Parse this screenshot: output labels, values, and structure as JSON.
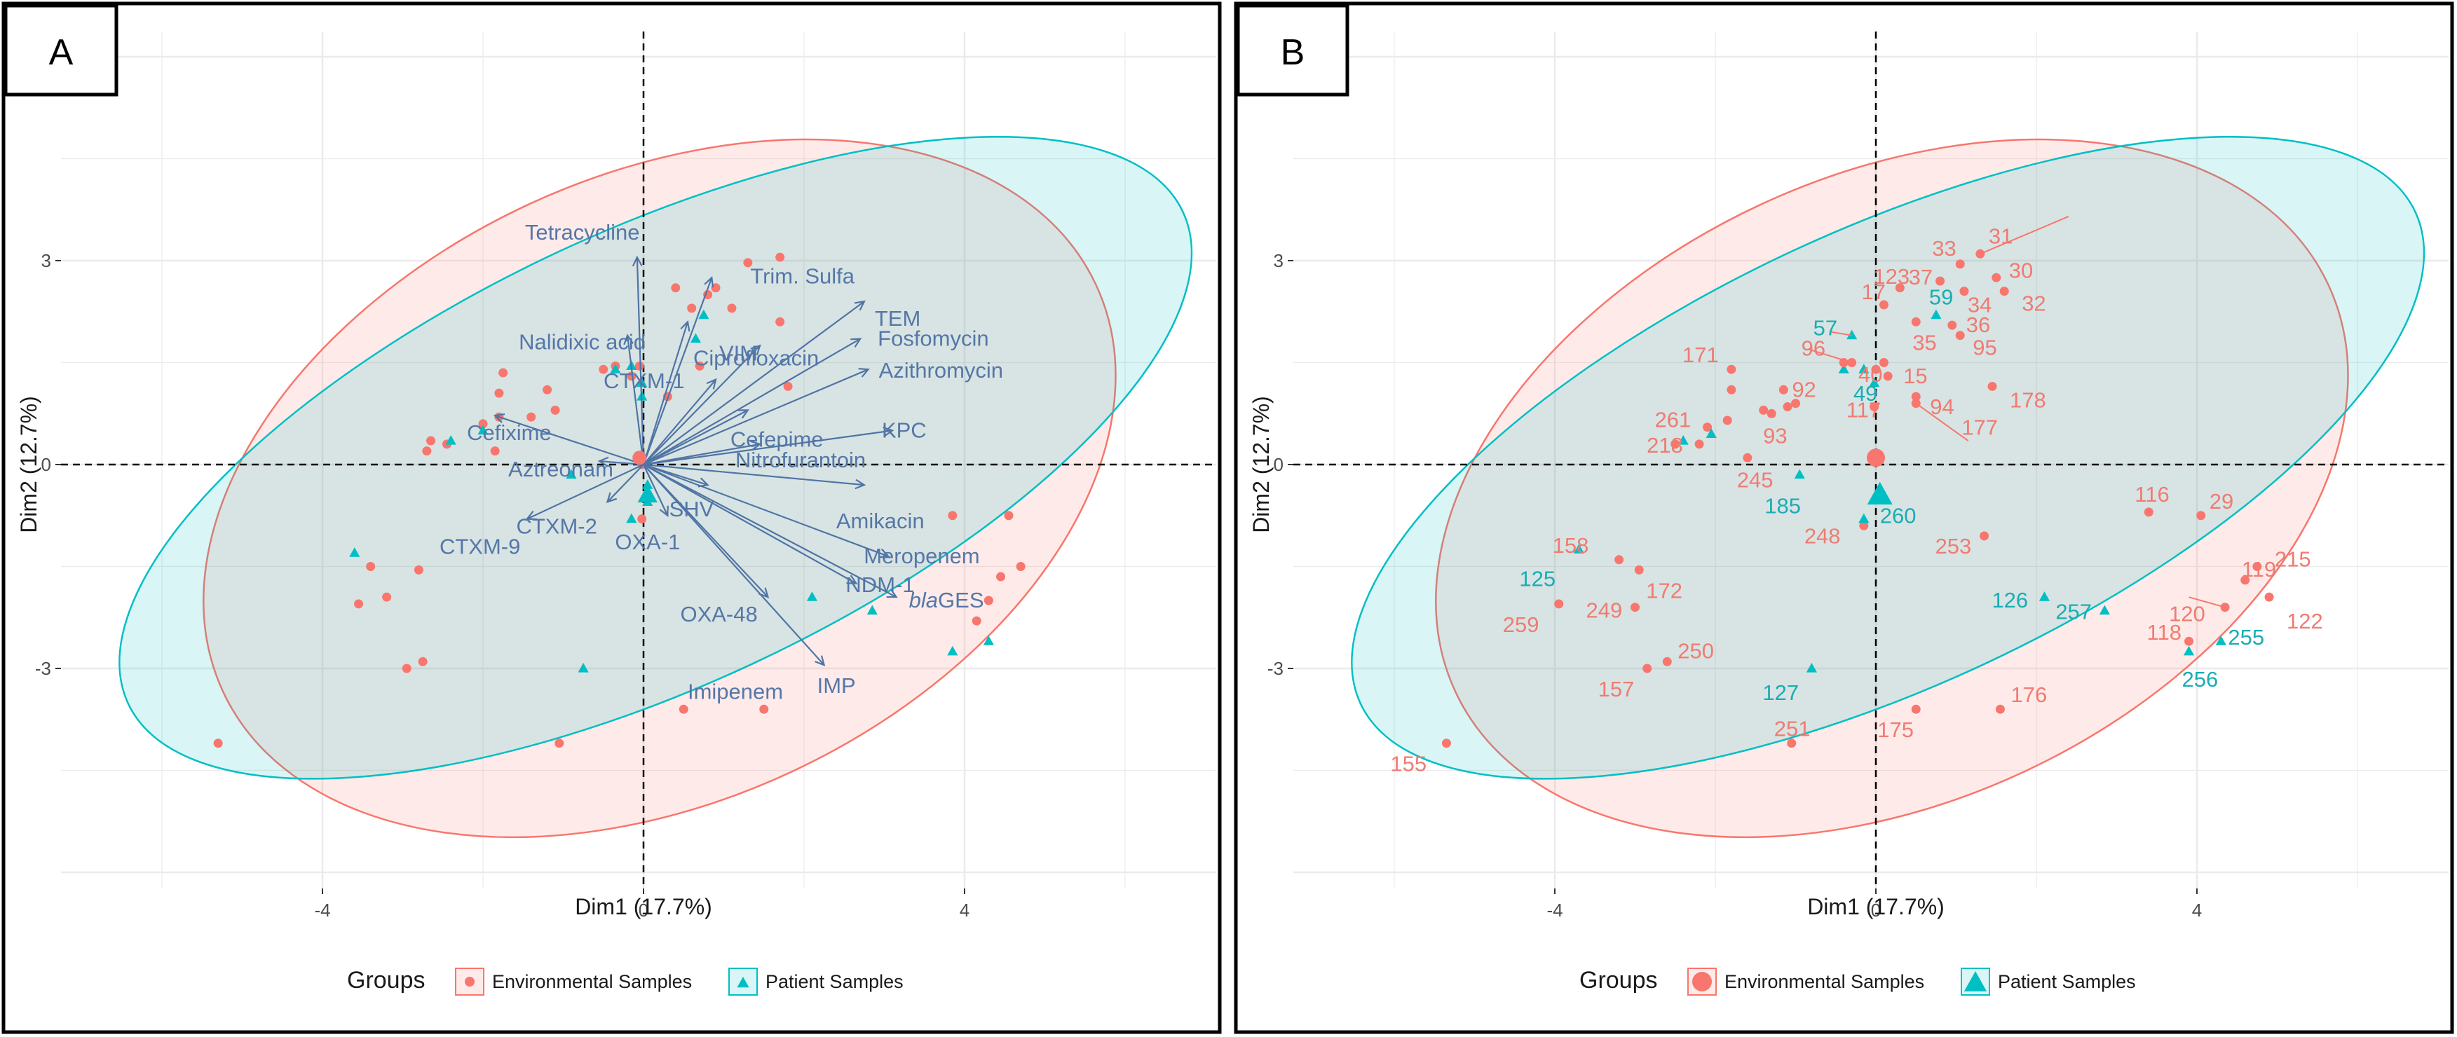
{
  "colors": {
    "env": "#f8766d",
    "pat": "#00bfc4",
    "arrow": "#4f74a5",
    "grid": "#ebebeb"
  },
  "chart_data": [
    {
      "panel_label": "A",
      "type": "scatter",
      "subtype": "pca-biplot",
      "xlabel": "Dim1 (17.7%)",
      "ylabel": "Dim2 (12.7%)",
      "xlim": [
        -7.8,
        7.8
      ],
      "ylim": [
        -6.3,
        5.6
      ],
      "xticks": [
        -4,
        0,
        4
      ],
      "xtick_labels": [
        "-4",
        "0",
        "4"
      ],
      "yticks": [
        3,
        0,
        -3
      ],
      "ytick_labels": [
        "3",
        "0",
        "-3"
      ],
      "grid": true,
      "legend": {
        "title": "Groups",
        "position": "bottom",
        "items": [
          "Environmental Samples",
          "Patient Samples"
        ]
      },
      "ellipses": [
        {
          "group": "Environmental Samples",
          "cx": 0.2,
          "cy": -0.35,
          "rx": 6.0,
          "ry": 4.6,
          "angle_deg": -25
        },
        {
          "group": "Patient Samples",
          "cx": 0.15,
          "cy": 0.1,
          "rx": 7.25,
          "ry": 3.35,
          "angle_deg": -25
        }
      ],
      "centroids": [
        {
          "group": "Environmental Samples",
          "x": -0.05,
          "y": 0.1
        },
        {
          "group": "Patient Samples",
          "x": 0.05,
          "y": -0.45
        }
      ],
      "points_env": [
        [
          1.7,
          3.05
        ],
        [
          1.3,
          2.97
        ],
        [
          0.4,
          2.6
        ],
        [
          0.8,
          2.5
        ],
        [
          0.9,
          2.6
        ],
        [
          1.1,
          2.3
        ],
        [
          0.6,
          2.3
        ],
        [
          1.7,
          2.1
        ],
        [
          -0.05,
          1.45
        ],
        [
          -0.5,
          1.4
        ],
        [
          -0.35,
          1.45
        ],
        [
          -0.15,
          1.3
        ],
        [
          0.7,
          1.45
        ],
        [
          0.3,
          1.0
        ],
        [
          -1.75,
          1.35
        ],
        [
          -1.8,
          1.05
        ],
        [
          -1.2,
          1.1
        ],
        [
          -1.1,
          0.8
        ],
        [
          -1.4,
          0.7
        ],
        [
          -1.8,
          0.7
        ],
        [
          -1.85,
          0.2
        ],
        [
          -2.0,
          0.6
        ],
        [
          -2.45,
          0.3
        ],
        [
          -2.7,
          0.2
        ],
        [
          -2.65,
          0.35
        ],
        [
          -0.02,
          0.0
        ],
        [
          -0.02,
          -0.8
        ],
        [
          1.8,
          1.15
        ],
        [
          -3.4,
          -1.5
        ],
        [
          -2.8,
          -1.55
        ],
        [
          -3.2,
          -1.95
        ],
        [
          -2.75,
          -2.9
        ],
        [
          -2.95,
          -3.0
        ],
        [
          -3.55,
          -2.05
        ],
        [
          4.55,
          -0.75
        ],
        [
          4.7,
          -1.5
        ],
        [
          4.45,
          -1.65
        ],
        [
          4.3,
          -2.0
        ],
        [
          4.15,
          -2.3
        ],
        [
          3.85,
          -0.75
        ],
        [
          1.5,
          -3.6
        ],
        [
          0.5,
          -3.6
        ],
        [
          -1.05,
          -4.1
        ],
        [
          -5.3,
          -4.1
        ]
      ],
      "points_pat": [
        [
          0.05,
          -0.45
        ],
        [
          0.05,
          -0.3
        ],
        [
          0.05,
          -0.55
        ],
        [
          -0.15,
          -0.8
        ],
        [
          -0.9,
          -0.15
        ],
        [
          -2.4,
          0.35
        ],
        [
          -2.0,
          0.5
        ],
        [
          -3.6,
          -1.3
        ],
        [
          -0.75,
          -3.0
        ],
        [
          2.1,
          -1.95
        ],
        [
          2.85,
          -2.15
        ],
        [
          3.85,
          -2.75
        ],
        [
          4.3,
          -2.6
        ],
        [
          0.75,
          2.2
        ],
        [
          0.65,
          1.85
        ],
        [
          -0.35,
          1.4
        ],
        [
          -0.15,
          1.45
        ],
        [
          -0.02,
          1.2
        ],
        [
          -0.02,
          1.0
        ]
      ],
      "variables": [
        {
          "name": "Tetracycline",
          "x": -0.08,
          "y": 3.05
        },
        {
          "name": "Trim. Sulfa",
          "x": 0.85,
          "y": 2.75
        },
        {
          "name": "VIM",
          "x": 0.55,
          "y": 2.1
        },
        {
          "name": "TEM",
          "x": 2.75,
          "y": 2.4
        },
        {
          "name": "Nalidixic acid",
          "x": -0.2,
          "y": 1.9
        },
        {
          "name": "Ciprofloxacin",
          "x": 1.45,
          "y": 1.75
        },
        {
          "name": "Fosfomycin",
          "x": 2.7,
          "y": 1.85
        },
        {
          "name": "CTXM-1",
          "x": 0.9,
          "y": 1.25
        },
        {
          "name": "Azithromycin",
          "x": 2.8,
          "y": 1.4
        },
        {
          "name": "Cefixime",
          "x": -1.85,
          "y": 0.72
        },
        {
          "name": "Cefepime",
          "x": 1.3,
          "y": 0.8
        },
        {
          "name": "KPC",
          "x": 3.1,
          "y": 0.5
        },
        {
          "name": "Aztreonam",
          "x": -0.55,
          "y": 0.05
        },
        {
          "name": "Nitrofurantoin",
          "x": 1.45,
          "y": 0.3
        },
        {
          "name": "CTXM-2",
          "x": -0.45,
          "y": -0.55
        },
        {
          "name": "SHV",
          "x": 0.8,
          "y": -0.3
        },
        {
          "name": "OXA-1",
          "x": 0.3,
          "y": -0.75
        },
        {
          "name": "Amikacin",
          "x": 2.75,
          "y": -0.3
        },
        {
          "name": "CTXM-9",
          "x": -1.45,
          "y": -0.8
        },
        {
          "name": "Meropenem",
          "x": 3.05,
          "y": -1.35
        },
        {
          "name": "NDM-1",
          "x": 2.65,
          "y": -1.75
        },
        {
          "name": "OXA-48",
          "x": 1.55,
          "y": -1.95
        },
        {
          "name": "blaGES",
          "x": 3.15,
          "y": -1.95
        },
        {
          "name": "IMP",
          "x": 2.25,
          "y": -2.95
        }
      ],
      "variable_label_parts": {
        "blaGES": [
          "bla",
          "GES"
        ]
      },
      "extra_labels": [
        "Imipenem"
      ]
    },
    {
      "panel_label": "B",
      "type": "scatter",
      "subtype": "pca-individuals",
      "xlabel": "Dim1 (17.7%)",
      "ylabel": "Dim2 (12.7%)",
      "xlim": [
        -7.8,
        7.8
      ],
      "ylim": [
        -6.3,
        5.6
      ],
      "xticks": [
        -4,
        0,
        4
      ],
      "xtick_labels": [
        "-4",
        "0",
        "4"
      ],
      "yticks": [
        3,
        0,
        -3
      ],
      "ytick_labels": [
        "3",
        "0",
        "-3"
      ],
      "grid": true,
      "legend": {
        "title": "Groups",
        "position": "bottom",
        "items": [
          "Environmental Samples",
          "Patient Samples"
        ]
      },
      "ellipses": [
        {
          "group": "Environmental Samples",
          "cx": 0.2,
          "cy": -0.35,
          "rx": 6.0,
          "ry": 4.6,
          "angle_deg": -25
        },
        {
          "group": "Patient Samples",
          "cx": 0.15,
          "cy": 0.1,
          "rx": 7.25,
          "ry": 3.35,
          "angle_deg": -25
        }
      ],
      "centroids": [
        {
          "group": "Environmental Samples",
          "x": 0.0,
          "y": 0.1
        },
        {
          "group": "Patient Samples",
          "x": 0.05,
          "y": -0.45
        }
      ],
      "points": [
        {
          "label": "31",
          "group": "env",
          "x": 1.3,
          "y": 3.1
        },
        {
          "label": "33",
          "group": "env",
          "x": 1.05,
          "y": 2.95
        },
        {
          "label": "30",
          "group": "env",
          "x": 1.5,
          "y": 2.75
        },
        {
          "label": "37",
          "group": "env",
          "x": 0.8,
          "y": 2.7
        },
        {
          "label": "34",
          "group": "env",
          "x": 1.1,
          "y": 2.55
        },
        {
          "label": "32",
          "group": "env",
          "x": 1.6,
          "y": 2.55
        },
        {
          "label": "123",
          "group": "env",
          "x": 0.3,
          "y": 2.6
        },
        {
          "label": "17",
          "group": "env",
          "x": 0.1,
          "y": 2.35
        },
        {
          "label": "36",
          "group": "env",
          "x": 0.95,
          "y": 2.05
        },
        {
          "label": "35",
          "group": "env",
          "x": 0.5,
          "y": 2.1
        },
        {
          "label": "95",
          "group": "env",
          "x": 1.05,
          "y": 1.9
        },
        {
          "label": "96",
          "group": "env",
          "x": -0.3,
          "y": 1.5
        },
        {
          "label": "40",
          "group": "env",
          "x": 0.0,
          "y": 1.4
        },
        {
          "label": "15",
          "group": "env",
          "x": 0.15,
          "y": 1.3
        },
        {
          "label": "94",
          "group": "env",
          "x": 0.5,
          "y": 1.0
        },
        {
          "label": "171",
          "group": "env",
          "x": -1.8,
          "y": 1.4
        },
        {
          "label": "92",
          "group": "env",
          "x": -1.15,
          "y": 1.1
        },
        {
          "label": "178",
          "group": "env",
          "x": 1.45,
          "y": 1.15
        },
        {
          "label": "93",
          "group": "env",
          "x": -1.3,
          "y": 0.75
        },
        {
          "label": "117",
          "group": "env",
          "x": -0.02,
          "y": 0.85
        },
        {
          "label": "177",
          "group": "env",
          "x": 0.5,
          "y": 0.9
        },
        {
          "label": "261",
          "group": "env",
          "x": -2.1,
          "y": 0.55
        },
        {
          "label": "218",
          "group": "env",
          "x": -2.2,
          "y": 0.3
        },
        {
          "label": "245",
          "group": "env",
          "x": -1.6,
          "y": 0.1
        },
        {
          "label": "116",
          "group": "env",
          "x": 3.4,
          "y": -0.7
        },
        {
          "label": "29",
          "group": "env",
          "x": 4.05,
          "y": -0.75
        },
        {
          "label": "248",
          "group": "env",
          "x": -0.15,
          "y": -0.9
        },
        {
          "label": "253",
          "group": "env",
          "x": 1.35,
          "y": -1.05
        },
        {
          "label": "158",
          "group": "env",
          "x": -3.2,
          "y": -1.4
        },
        {
          "label": "172",
          "group": "env",
          "x": -2.95,
          "y": -1.55
        },
        {
          "label": "215",
          "group": "env",
          "x": 4.75,
          "y": -1.5
        },
        {
          "label": "119",
          "group": "env",
          "x": 4.6,
          "y": -1.7
        },
        {
          "label": "122",
          "group": "env",
          "x": 4.9,
          "y": -1.95
        },
        {
          "label": "120",
          "group": "env",
          "x": 4.35,
          "y": -2.1
        },
        {
          "label": "259",
          "group": "env",
          "x": -3.95,
          "y": -2.05
        },
        {
          "label": "249",
          "group": "env",
          "x": -3.0,
          "y": -2.1
        },
        {
          "label": "250",
          "group": "env",
          "x": -2.6,
          "y": -2.9
        },
        {
          "label": "157",
          "group": "env",
          "x": -2.85,
          "y": -3.0
        },
        {
          "label": "118",
          "group": "env",
          "x": 3.9,
          "y": -2.6
        },
        {
          "label": "176",
          "group": "env",
          "x": 1.55,
          "y": -3.6
        },
        {
          "label": "175",
          "group": "env",
          "x": 0.5,
          "y": -3.6
        },
        {
          "label": "251",
          "group": "env",
          "x": -1.05,
          "y": -4.1
        },
        {
          "label": "155",
          "group": "env",
          "x": -5.35,
          "y": -4.1
        },
        {
          "label": "59",
          "group": "pat",
          "x": 0.75,
          "y": 2.2
        },
        {
          "label": "57",
          "group": "pat",
          "x": -0.3,
          "y": 1.9
        },
        {
          "label": "49",
          "group": "pat",
          "x": -0.15,
          "y": 1.4
        },
        {
          "label": "185",
          "group": "pat",
          "x": -0.95,
          "y": -0.15
        },
        {
          "label": "260",
          "group": "pat",
          "x": 0.05,
          "y": -0.5
        },
        {
          "label": "125",
          "group": "pat",
          "x": -3.7,
          "y": -1.25
        },
        {
          "label": "126",
          "group": "pat",
          "x": 2.1,
          "y": -1.95
        },
        {
          "label": "257",
          "group": "pat",
          "x": 2.85,
          "y": -2.15
        },
        {
          "label": "255",
          "group": "pat",
          "x": 4.3,
          "y": -2.6
        },
        {
          "label": "256",
          "group": "pat",
          "x": 3.9,
          "y": -2.75
        },
        {
          "label": "127",
          "group": "pat",
          "x": -0.8,
          "y": -3.0
        },
        {
          "label": "",
          "group": "pat",
          "x": -2.05,
          "y": 0.45
        },
        {
          "label": "",
          "group": "pat",
          "x": -2.4,
          "y": 0.35
        },
        {
          "label": "",
          "group": "pat",
          "x": -0.4,
          "y": 1.4
        },
        {
          "label": "",
          "group": "pat",
          "x": -0.02,
          "y": 1.2
        },
        {
          "label": "",
          "group": "pat",
          "x": -0.15,
          "y": -0.8
        },
        {
          "label": "",
          "group": "env",
          "x": -1.0,
          "y": 0.9
        },
        {
          "label": "",
          "group": "env",
          "x": -1.8,
          "y": 1.1
        },
        {
          "label": "",
          "group": "env",
          "x": -0.4,
          "y": 1.5
        },
        {
          "label": "",
          "group": "env",
          "x": 0.1,
          "y": 1.5
        },
        {
          "label": "",
          "group": "env",
          "x": -1.85,
          "y": 0.65
        },
        {
          "label": "",
          "group": "env",
          "x": -2.5,
          "y": 0.3
        },
        {
          "label": "",
          "group": "env",
          "x": -1.4,
          "y": 0.8
        },
        {
          "label": "",
          "group": "env",
          "x": -1.1,
          "y": 0.85
        }
      ]
    }
  ]
}
